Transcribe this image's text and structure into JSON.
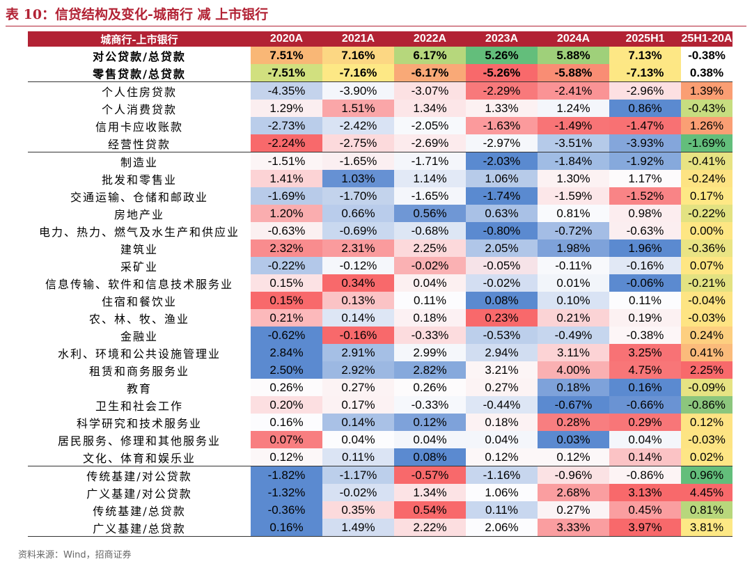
{
  "title": "表 10：信贷结构及变化-城商行 减 上市银行",
  "source": "资料来源：Wind，招商证券",
  "table": {
    "headers": [
      "城商行-上市银行",
      "2020A",
      "2021A",
      "2022A",
      "2023A",
      "2024A",
      "2025H1",
      "25H1-20A"
    ],
    "rows": [
      {
        "label": "对公贷款/总贷款",
        "values": [
          "7.51%",
          "7.16%",
          "6.17%",
          "5.26%",
          "5.88%",
          "7.13%",
          "-0.38%"
        ],
        "colors": [
          "#f9b776",
          "#fcd783",
          "#b6d77c",
          "#63be7b",
          "#9fd07a",
          "#fde785",
          "#ffffff"
        ]
      },
      {
        "label": "零售贷款/总贷款",
        "values": [
          "-7.51%",
          "-7.16%",
          "-6.17%",
          "-5.26%",
          "-5.88%",
          "-7.13%",
          "0.38%"
        ],
        "colors": [
          "#d1e07f",
          "#fde885",
          "#f9a977",
          "#f8696b",
          "#f98d74",
          "#fde784",
          "#ffffff"
        ]
      },
      {
        "label": "个人住房贷款",
        "values": [
          "-4.35%",
          "-3.90%",
          "-3.07%",
          "-2.29%",
          "-2.41%",
          "-2.96%",
          "1.39%"
        ],
        "colors": [
          "#c4d3ec",
          "#f4f6fb",
          "#fce1e3",
          "#f8797b",
          "#fa9395",
          "#fde0e2",
          "#fa9e73"
        ]
      },
      {
        "label": "个人消费贷款",
        "values": [
          "1.29%",
          "1.51%",
          "1.34%",
          "1.33%",
          "1.24%",
          "0.86%",
          "-0.43%"
        ],
        "colors": [
          "#fbeef0",
          "#faa6a8",
          "#fce6e8",
          "#fcf1f2",
          "#f4f6fb",
          "#5b8ad0",
          "#c7dd80"
        ]
      },
      {
        "label": "信用卡应收账款",
        "values": [
          "-2.73%",
          "-2.42%",
          "-2.05%",
          "-1.63%",
          "-1.49%",
          "-1.47%",
          "1.26%"
        ],
        "colors": [
          "#bacdea",
          "#d9e3f4",
          "#f7f9fc",
          "#fb9a9c",
          "#f87476",
          "#f87173",
          "#fa9f74"
        ]
      },
      {
        "label": "经营性贷款",
        "values": [
          "-2.24%",
          "-2.75%",
          "-2.69%",
          "-2.97%",
          "-3.51%",
          "-3.93%",
          "-1.69%"
        ],
        "colors": [
          "#f8696b",
          "#fcdadc",
          "#fcebed",
          "#f5f7fb",
          "#b5cae9",
          "#84a6db",
          "#63be7b"
        ]
      },
      {
        "label": "制造业",
        "values": [
          "-1.51%",
          "-1.65%",
          "-1.71%",
          "-2.03%",
          "-1.84%",
          "-1.92%",
          "-0.41%"
        ],
        "colors": [
          "#fcf5f6",
          "#fbeff1",
          "#f4f6fb",
          "#5a8ad0",
          "#a0bce4",
          "#86a9dc",
          "#e7e383"
        ]
      },
      {
        "label": "批发和零售业",
        "values": [
          "1.41%",
          "1.03%",
          "1.14%",
          "1.06%",
          "1.30%",
          "1.17%",
          "-0.24%"
        ],
        "colors": [
          "#fcd3d5",
          "#6691d3",
          "#e2e9f6",
          "#b7cbe9",
          "#fcf2f3",
          "#fdfbfc",
          "#fde383"
        ]
      },
      {
        "label": "交通运输、仓储和邮政业",
        "values": [
          "-1.69%",
          "-1.70%",
          "-1.65%",
          "-1.74%",
          "-1.59%",
          "-1.52%",
          "0.17%"
        ],
        "colors": [
          "#b8cbe9",
          "#c3d3ec",
          "#f4f6fb",
          "#5a8ad0",
          "#fce7e9",
          "#f98486",
          "#fee885"
        ]
      },
      {
        "label": "房地产业",
        "values": [
          "1.20%",
          "0.66%",
          "0.56%",
          "0.63%",
          "0.81%",
          "0.98%",
          "-0.22%"
        ],
        "colors": [
          "#faadaf",
          "#b9cceb",
          "#6f97d5",
          "#a9c1e6",
          "#f9fafd",
          "#fcedef",
          "#e3e282"
        ]
      },
      {
        "label": "电力、热力、燃气及水生产和供应业",
        "values": [
          "-0.63%",
          "-0.69%",
          "-0.68%",
          "-0.80%",
          "-0.72%",
          "-0.63%",
          "0.00%"
        ],
        "colors": [
          "#fbf0f1",
          "#c9d8ef",
          "#dde6f4",
          "#5b8ad0",
          "#a4bde5",
          "#fbeef0",
          "#fee683"
        ]
      },
      {
        "label": "建筑业",
        "values": [
          "2.32%",
          "2.31%",
          "2.25%",
          "2.05%",
          "1.98%",
          "1.96%",
          "-0.36%"
        ],
        "colors": [
          "#f98c8e",
          "#fa9b9d",
          "#fcd9db",
          "#b0c6e8",
          "#7ea2da",
          "#5b8ad0",
          "#eae484"
        ]
      },
      {
        "label": "采矿业",
        "values": [
          "-0.22%",
          "-0.12%",
          "-0.02%",
          "-0.05%",
          "-0.11%",
          "-0.16%",
          "0.07%"
        ],
        "colors": [
          "#b3c8e9",
          "#f5f7fb",
          "#fab1b3",
          "#f6e3e8",
          "#f8f9fc",
          "#e1e8f5",
          "#fee683"
        ]
      },
      {
        "label": "信息传输、软件和信息技术服务业",
        "values": [
          "0.15%",
          "0.34%",
          "0.04%",
          "-0.02%",
          "0.01%",
          "-0.06%",
          "-0.21%"
        ],
        "colors": [
          "#fce2e4",
          "#f8696b",
          "#fcf0f1",
          "#d3def2",
          "#f2f5fa",
          "#5b8ad0",
          "#e3e282"
        ]
      },
      {
        "label": "住宿和餐饮业",
        "values": [
          "0.15%",
          "0.13%",
          "0.11%",
          "0.08%",
          "0.10%",
          "0.11%",
          "-0.04%"
        ],
        "colors": [
          "#f8696b",
          "#fbc3c5",
          "#fcfcfe",
          "#5b8ad0",
          "#d9e3f4",
          "#fcfcfe",
          "#fde483"
        ]
      },
      {
        "label": "农、林、牧、渔业",
        "values": [
          "0.21%",
          "0.14%",
          "0.18%",
          "0.23%",
          "0.21%",
          "0.19%",
          "-0.03%"
        ],
        "colors": [
          "#fcb9bb",
          "#dde6f5",
          "#fcf1f3",
          "#f8696b",
          "#fbd3d5",
          "#fcf1f2",
          "#fee483"
        ]
      },
      {
        "label": "金融业",
        "values": [
          "-0.62%",
          "-0.16%",
          "-0.33%",
          "-0.53%",
          "-0.49%",
          "-0.38%",
          "0.24%"
        ],
        "colors": [
          "#5b8ad0",
          "#f8696b",
          "#fcdcde",
          "#bccfeb",
          "#c6d6ee",
          "#fdf6f7",
          "#fdcf80"
        ]
      },
      {
        "label": "水利、环境和公共设施管理业",
        "values": [
          "2.84%",
          "2.91%",
          "2.99%",
          "2.94%",
          "3.11%",
          "3.25%",
          "0.41%"
        ],
        "colors": [
          "#5b8ad0",
          "#a5bfe5",
          "#f5f7fb",
          "#d1ddf1",
          "#fcd3d5",
          "#f87275",
          "#fbbb7b"
        ]
      },
      {
        "label": "租赁和商务服务业",
        "values": [
          "2.50%",
          "2.92%",
          "2.82%",
          "3.21%",
          "4.00%",
          "4.75%",
          "2.25%"
        ],
        "colors": [
          "#5b8ad0",
          "#9cb8e2",
          "#86a9dc",
          "#fcf5f6",
          "#fab0b2",
          "#f87678",
          "#f8696b"
        ]
      },
      {
        "label": "教育",
        "values": [
          "0.26%",
          "0.27%",
          "0.26%",
          "0.27%",
          "0.18%",
          "0.16%",
          "-0.09%"
        ],
        "colors": [
          "#fdfbfc",
          "#fcf3f4",
          "#fdfbfc",
          "#fcf3f4",
          "#7ea2da",
          "#5b8ad0",
          "#e6e383"
        ]
      },
      {
        "label": "卫生和社会工作",
        "values": [
          "0.20%",
          "0.17%",
          "-0.33%",
          "-0.44%",
          "-0.67%",
          "-0.66%",
          "-0.86%"
        ],
        "colors": [
          "#fcdfe1",
          "#fcf2f3",
          "#f6f8fc",
          "#dde6f5",
          "#5b8ad0",
          "#6a93d3",
          "#8cc67d"
        ]
      },
      {
        "label": "科学研究和技术服务业",
        "values": [
          "0.16%",
          "0.14%",
          "0.12%",
          "0.18%",
          "0.28%",
          "0.29%",
          "0.12%"
        ],
        "colors": [
          "#fcfcfe",
          "#a9c1e6",
          "#7ea2da",
          "#fcf2f3",
          "#f87e80",
          "#f87678",
          "#fee383"
        ]
      },
      {
        "label": "居民服务、修理和其他服务业",
        "values": [
          "0.07%",
          "0.04%",
          "0.04%",
          "0.04%",
          "0.03%",
          "0.04%",
          "-0.03%"
        ],
        "colors": [
          "#f87e80",
          "#fcfcfe",
          "#f4f6fb",
          "#f4f6fb",
          "#5b8ad0",
          "#f4f6fb",
          "#fde483"
        ]
      },
      {
        "label": "文化、体育和娱乐业",
        "values": [
          "0.12%",
          "0.11%",
          "0.08%",
          "0.12%",
          "0.12%",
          "0.14%",
          "0.02%"
        ],
        "colors": [
          "#fcf7f8",
          "#dbe4f4",
          "#5b8ad0",
          "#fcf7f8",
          "#fcf7f8",
          "#fbc3c5",
          "#fee685"
        ]
      },
      {
        "label": "传统基建/对公贷款",
        "values": [
          "-1.82%",
          "-1.17%",
          "-0.57%",
          "-1.16%",
          "-0.96%",
          "-0.86%",
          "0.96%"
        ],
        "colors": [
          "#5b8ad0",
          "#bccfeb",
          "#f8696b",
          "#c7d6ee",
          "#fbe2e4",
          "#fdf4f5",
          "#63be7b"
        ]
      },
      {
        "label": "广义基建/对公贷款",
        "values": [
          "-1.32%",
          "-0.02%",
          "1.34%",
          "1.06%",
          "2.68%",
          "3.13%",
          "4.45%"
        ],
        "colors": [
          "#5b8ad0",
          "#d7e1f3",
          "#fce3e5",
          "#fcfcfe",
          "#fa9ea0",
          "#f8696b",
          "#f8696b"
        ]
      },
      {
        "label": "传统基建/总贷款",
        "values": [
          "-0.36%",
          "0.35%",
          "0.54%",
          "0.11%",
          "0.27%",
          "0.45%",
          "0.81%"
        ],
        "colors": [
          "#5b8ad0",
          "#fcdadc",
          "#f8696b",
          "#c8d7ef",
          "#fbf3f5",
          "#fa9ea0",
          "#b8d77c"
        ]
      },
      {
        "label": "广义基建/总贷款",
        "values": [
          "0.16%",
          "1.49%",
          "2.22%",
          "2.06%",
          "3.33%",
          "3.97%",
          "3.81%"
        ],
        "colors": [
          "#5b8ad0",
          "#d2ddf1",
          "#fcdee0",
          "#fcfcfe",
          "#fa9ea0",
          "#f8696b",
          "#fde885"
        ]
      }
    ]
  }
}
